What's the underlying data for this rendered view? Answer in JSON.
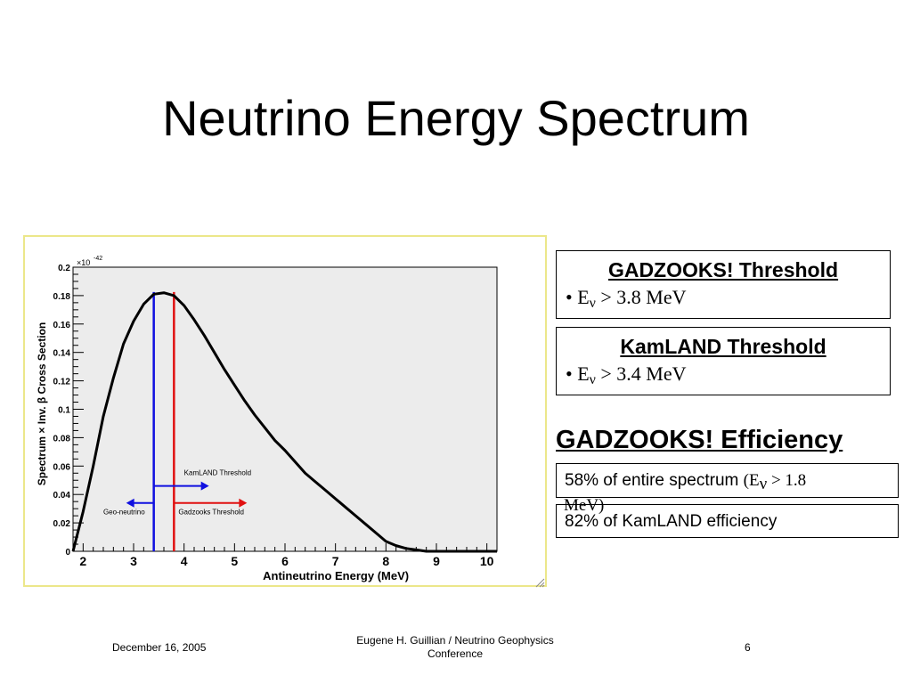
{
  "slide": {
    "title": "Neutrino Energy Spectrum"
  },
  "gadzooks_box": {
    "title": "GADZOOKS! Threshold",
    "bullet_prefix": "• E",
    "subscript": "ν",
    "bullet_value": " > 3.8 MeV"
  },
  "kamland_box": {
    "title": "KamLAND Threshold",
    "bullet_prefix": "• E",
    "subscript": "ν",
    "bullet_value": " > 3.4 MeV"
  },
  "efficiency": {
    "title": "GADZOOKS! Efficiency",
    "line1_main": "58% of entire spectrum ",
    "line1_paren_prefix": "(E",
    "line1_paren_sub": "ν",
    "line1_paren_rest": " > 1.8",
    "line1_overflow": "MeV)",
    "line2": "82% of KamLAND efficiency"
  },
  "footer": {
    "date": "December 16, 2005",
    "center_line1": "Eugene H. Guillian / Neutrino Geophysics",
    "center_line2": "Conference",
    "page": "6"
  },
  "chart_data": {
    "type": "line",
    "xlabel": "Antineutrino Energy (MeV)",
    "ylabel": "Spectrum × Inv. β Cross Section",
    "y_exponent_label": "×10",
    "y_exponent": "-42",
    "xlim": [
      1.8,
      10.2
    ],
    "ylim": [
      0,
      0.2
    ],
    "x_ticks": [
      "2",
      "3",
      "4",
      "5",
      "6",
      "7",
      "8",
      "9",
      "10"
    ],
    "y_ticks": [
      "0",
      "0.02",
      "0.04",
      "0.06",
      "0.08",
      "0.1",
      "0.12",
      "0.14",
      "0.16",
      "0.18",
      "0.2"
    ],
    "series": [
      {
        "x": [
          1.8,
          2.0,
          2.2,
          2.4,
          2.6,
          2.8,
          3.0,
          3.2,
          3.4,
          3.6,
          3.8,
          4.0,
          4.2,
          4.4,
          4.6,
          4.8,
          5.0,
          5.2,
          5.4,
          5.6,
          5.8,
          6.0,
          6.2,
          6.4,
          6.6,
          6.8,
          7.0,
          7.2,
          7.4,
          7.6,
          7.8,
          8.0,
          8.2,
          8.4,
          8.6,
          8.8,
          9.0,
          9.5,
          10.0,
          10.2
        ],
        "y": [
          0.0,
          0.028,
          0.06,
          0.095,
          0.122,
          0.146,
          0.162,
          0.174,
          0.181,
          0.182,
          0.18,
          0.173,
          0.163,
          0.152,
          0.14,
          0.128,
          0.117,
          0.106,
          0.096,
          0.087,
          0.078,
          0.071,
          0.063,
          0.055,
          0.049,
          0.043,
          0.037,
          0.031,
          0.025,
          0.019,
          0.013,
          0.007,
          0.004,
          0.002,
          0.001,
          0.0,
          0.0,
          0.0,
          0.0,
          0.0
        ],
        "color": "#000000"
      }
    ],
    "threshold_lines": [
      {
        "x": 3.4,
        "color": "#1010e0"
      },
      {
        "x": 3.8,
        "color": "#e01010"
      }
    ],
    "annotations": {
      "kamland_label": "KamLAND Threshold",
      "geo_label": "Geo-neutrino",
      "gadzooks_label": "Gadzooks Threshold"
    },
    "frame_color": "#ece78a",
    "plot_bg": "#ececec"
  }
}
